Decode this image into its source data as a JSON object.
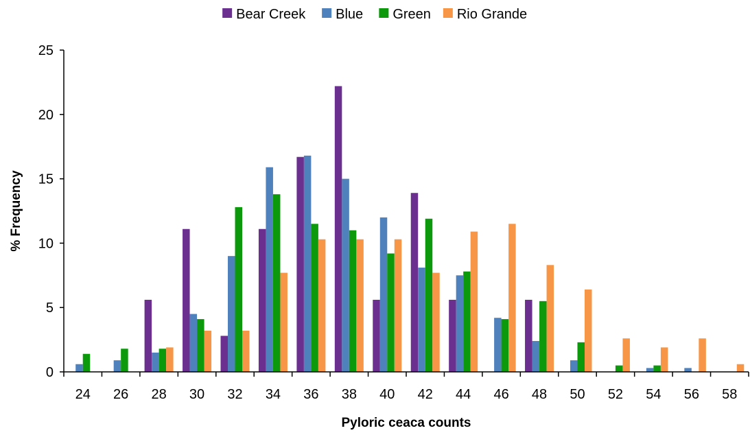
{
  "chart_data": {
    "type": "bar",
    "title": "",
    "xlabel": "Pyloric ceaca counts",
    "ylabel": "% Frequency",
    "ylim": [
      0,
      25
    ],
    "yticks": [
      0,
      5,
      10,
      15,
      20,
      25
    ],
    "grid": false,
    "legend_position": "top",
    "categories": [
      "24",
      "26",
      "28",
      "30",
      "32",
      "34",
      "36",
      "38",
      "40",
      "42",
      "44",
      "46",
      "48",
      "50",
      "52",
      "54",
      "56",
      "58"
    ],
    "series": [
      {
        "name": "Bear Creek",
        "color": "#6a2f8f",
        "values": [
          0,
          0,
          5.6,
          11.1,
          2.8,
          11.1,
          16.7,
          22.2,
          5.6,
          13.9,
          5.6,
          0,
          5.6,
          0,
          0,
          0,
          0,
          0
        ]
      },
      {
        "name": "Blue",
        "color": "#4f81bd",
        "values": [
          0.6,
          0.9,
          1.5,
          4.5,
          9.0,
          15.9,
          16.8,
          15.0,
          12.0,
          8.1,
          7.5,
          4.2,
          2.4,
          0.9,
          0,
          0.3,
          0.3,
          0
        ]
      },
      {
        "name": "Green",
        "color": "#0c9a0c",
        "values": [
          1.4,
          1.8,
          1.8,
          4.1,
          12.8,
          13.8,
          11.5,
          11.0,
          9.2,
          11.9,
          7.8,
          4.1,
          5.5,
          2.3,
          0.5,
          0.5,
          0,
          0
        ]
      },
      {
        "name": "Rio Grande",
        "color": "#f79646",
        "values": [
          0,
          0,
          1.9,
          3.2,
          3.2,
          7.7,
          10.3,
          10.3,
          10.3,
          7.7,
          10.9,
          11.5,
          8.3,
          6.4,
          2.6,
          1.9,
          2.6,
          0.6
        ]
      }
    ]
  }
}
